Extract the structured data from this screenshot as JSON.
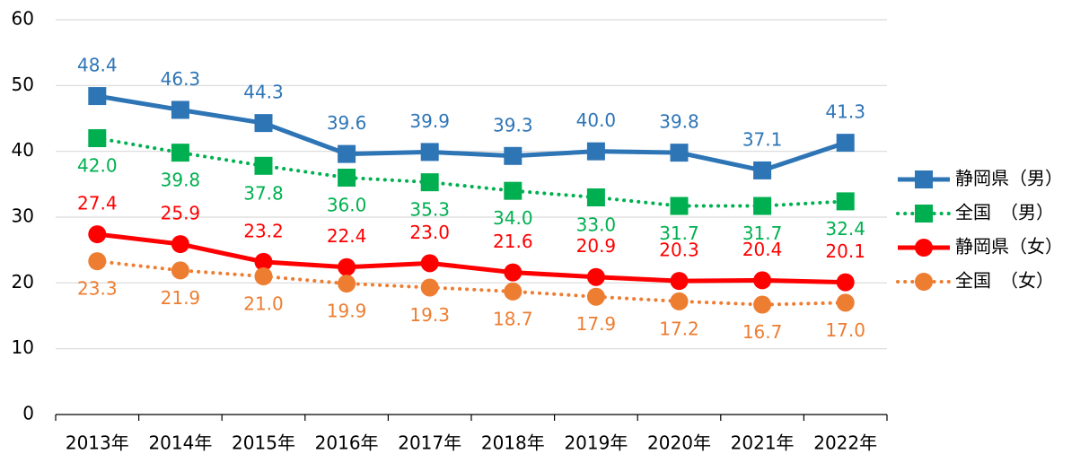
{
  "chart_data": {
    "type": "line",
    "categories": [
      "2013年",
      "2014年",
      "2015年",
      "2016年",
      "2017年",
      "2018年",
      "2019年",
      "2020年",
      "2021年",
      "2022年"
    ],
    "ylim": [
      0,
      60
    ],
    "yticks": [
      0,
      10,
      20,
      30,
      40,
      50,
      60
    ],
    "grid": true,
    "legend": "right",
    "series": [
      {
        "name": "静岡県（男）",
        "color": "#2e75b6",
        "line": "solid",
        "marker": "square",
        "label_position": "above",
        "values": [
          48.4,
          46.3,
          44.3,
          39.6,
          39.9,
          39.3,
          40.0,
          39.8,
          37.1,
          41.3
        ],
        "value_labels": [
          "48.4",
          "46.3",
          "44.3",
          "39.6",
          "39.9",
          "39.3",
          "40.0",
          "39.8",
          "37.1",
          "41.3"
        ]
      },
      {
        "name": "全国　（男）",
        "color": "#00b050",
        "line": "dotted",
        "marker": "square",
        "label_position": "below",
        "values": [
          42.0,
          39.8,
          37.8,
          36.0,
          35.3,
          34.0,
          33.0,
          31.7,
          31.7,
          32.4
        ],
        "value_labels": [
          "42.0",
          "39.8",
          "37.8",
          "36.0",
          "35.3",
          "34.0",
          "33.0",
          "31.7",
          "31.7",
          "32.4"
        ]
      },
      {
        "name": "静岡県（女）",
        "color": "#ff0000",
        "line": "solid",
        "marker": "circle",
        "label_position": "above",
        "values": [
          27.4,
          25.9,
          23.2,
          22.4,
          23.0,
          21.6,
          20.9,
          20.3,
          20.4,
          20.1
        ],
        "value_labels": [
          "27.4",
          "25.9",
          "23.2",
          "22.4",
          "23.0",
          "21.6",
          "20.9",
          "20.3",
          "20.4",
          "20.1"
        ]
      },
      {
        "name": "全国　（女）",
        "color": "#ed7d31",
        "line": "dotted",
        "marker": "circle",
        "label_position": "below",
        "values": [
          23.3,
          21.9,
          21.0,
          19.9,
          19.3,
          18.7,
          17.9,
          17.2,
          16.7,
          17.0
        ],
        "value_labels": [
          "23.3",
          "21.9",
          "21.0",
          "19.9",
          "19.3",
          "18.7",
          "17.9",
          "17.2",
          "16.7",
          "17.0"
        ]
      }
    ]
  }
}
